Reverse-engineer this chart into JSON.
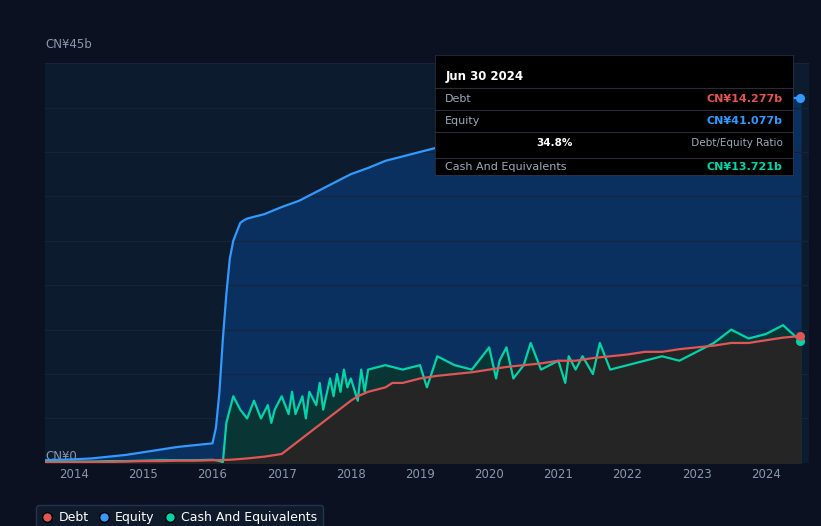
{
  "bg_color": "#0b1120",
  "plot_bg_color": "#0d1b2e",
  "grid_color": "#152538",
  "ylabel_45b": "CN¥45b",
  "ylabel_0": "CN¥0",
  "x_ticks": [
    2014,
    2015,
    2016,
    2017,
    2018,
    2019,
    2020,
    2021,
    2022,
    2023,
    2024
  ],
  "tooltip_date": "Jun 30 2024",
  "tooltip_debt_label": "Debt",
  "tooltip_debt_value": "CN¥14.277b",
  "tooltip_equity_label": "Equity",
  "tooltip_equity_value": "CN¥41.077b",
  "tooltip_ratio_bold": "34.8%",
  "tooltip_ratio_rest": " Debt/Equity Ratio",
  "tooltip_cash_label": "Cash And Equivalents",
  "tooltip_cash_value": "CN¥13.721b",
  "debt_color": "#e05555",
  "equity_color": "#3399ff",
  "cash_color": "#00d4aa",
  "equity_fill_color": "#0a3060",
  "cash_fill_color": "#0a3535",
  "debt_fill_color": "#252525",
  "legend_bg": "#111d2e",
  "legend_border": "#2a3a5a",
  "ylim": [
    0,
    45
  ],
  "xlim_start": 2013.58,
  "xlim_end": 2024.62,
  "equity_data": {
    "x": [
      2013.58,
      2014.0,
      2014.25,
      2014.5,
      2014.75,
      2015.0,
      2015.25,
      2015.5,
      2015.75,
      2016.0,
      2016.05,
      2016.1,
      2016.15,
      2016.2,
      2016.25,
      2016.3,
      2016.35,
      2016.4,
      2016.45,
      2016.5,
      2016.75,
      2017.0,
      2017.25,
      2017.5,
      2017.75,
      2018.0,
      2018.25,
      2018.5,
      2018.75,
      2019.0,
      2019.25,
      2019.5,
      2019.75,
      2020.0,
      2020.25,
      2020.5,
      2020.75,
      2021.0,
      2021.25,
      2021.5,
      2021.75,
      2022.0,
      2022.25,
      2022.5,
      2022.75,
      2023.0,
      2023.25,
      2023.5,
      2023.75,
      2024.0,
      2024.25,
      2024.5
    ],
    "y": [
      0.3,
      0.4,
      0.5,
      0.7,
      0.9,
      1.2,
      1.5,
      1.8,
      2.0,
      2.2,
      4.0,
      8.0,
      14.0,
      19.0,
      23.0,
      25.0,
      26.0,
      27.0,
      27.3,
      27.5,
      28.0,
      28.8,
      29.5,
      30.5,
      31.5,
      32.5,
      33.2,
      34.0,
      34.5,
      35.0,
      35.5,
      36.0,
      36.5,
      37.2,
      37.7,
      38.0,
      37.5,
      38.2,
      37.8,
      38.5,
      39.0,
      39.5,
      39.8,
      40.0,
      40.0,
      40.0,
      40.3,
      40.6,
      40.8,
      41.0,
      41.077,
      41.077
    ]
  },
  "cash_data": {
    "x": [
      2013.58,
      2014.0,
      2014.25,
      2014.5,
      2014.75,
      2015.0,
      2015.25,
      2015.5,
      2015.75,
      2016.0,
      2016.05,
      2016.1,
      2016.15,
      2016.2,
      2016.3,
      2016.4,
      2016.5,
      2016.6,
      2016.7,
      2016.8,
      2016.85,
      2016.9,
      2017.0,
      2017.1,
      2017.15,
      2017.2,
      2017.3,
      2017.35,
      2017.4,
      2017.5,
      2017.55,
      2017.6,
      2017.7,
      2017.75,
      2017.8,
      2017.85,
      2017.9,
      2017.95,
      2018.0,
      2018.1,
      2018.15,
      2018.2,
      2018.25,
      2018.5,
      2018.75,
      2019.0,
      2019.1,
      2019.25,
      2019.5,
      2019.75,
      2020.0,
      2020.1,
      2020.15,
      2020.25,
      2020.35,
      2020.5,
      2020.6,
      2020.75,
      2021.0,
      2021.1,
      2021.15,
      2021.25,
      2021.35,
      2021.5,
      2021.6,
      2021.75,
      2022.0,
      2022.25,
      2022.5,
      2022.75,
      2023.0,
      2023.25,
      2023.5,
      2023.75,
      2024.0,
      2024.25,
      2024.5
    ],
    "y": [
      0.1,
      0.15,
      0.15,
      0.2,
      0.2,
      0.25,
      0.3,
      0.3,
      0.3,
      0.35,
      0.3,
      0.2,
      0.1,
      4.5,
      7.5,
      6.0,
      5.0,
      7.0,
      5.0,
      6.5,
      4.5,
      6.0,
      7.5,
      5.5,
      8.0,
      5.5,
      7.5,
      5.0,
      8.0,
      6.5,
      9.0,
      6.0,
      9.5,
      7.5,
      10.0,
      8.0,
      10.5,
      8.5,
      9.5,
      7.0,
      10.5,
      8.0,
      10.5,
      11.0,
      10.5,
      11.0,
      8.5,
      12.0,
      11.0,
      10.5,
      13.0,
      9.5,
      11.5,
      13.0,
      9.5,
      11.0,
      13.5,
      10.5,
      11.5,
      9.0,
      12.0,
      10.5,
      12.0,
      10.0,
      13.5,
      10.5,
      11.0,
      11.5,
      12.0,
      11.5,
      12.5,
      13.5,
      15.0,
      14.0,
      14.5,
      15.5,
      13.721
    ]
  },
  "debt_data": {
    "x": [
      2013.58,
      2014.0,
      2014.25,
      2014.5,
      2014.75,
      2015.0,
      2015.25,
      2015.5,
      2015.75,
      2016.0,
      2016.25,
      2016.5,
      2016.75,
      2017.0,
      2017.25,
      2017.5,
      2017.75,
      2018.0,
      2018.1,
      2018.25,
      2018.5,
      2018.6,
      2018.75,
      2019.0,
      2019.25,
      2019.5,
      2019.75,
      2020.0,
      2020.25,
      2020.5,
      2020.75,
      2021.0,
      2021.25,
      2021.5,
      2021.75,
      2022.0,
      2022.25,
      2022.5,
      2022.75,
      2023.0,
      2023.25,
      2023.5,
      2023.75,
      2024.0,
      2024.25,
      2024.5
    ],
    "y": [
      0.05,
      0.08,
      0.1,
      0.1,
      0.15,
      0.2,
      0.2,
      0.25,
      0.25,
      0.3,
      0.35,
      0.5,
      0.7,
      1.0,
      2.5,
      4.0,
      5.5,
      7.0,
      7.5,
      8.0,
      8.5,
      9.0,
      9.0,
      9.5,
      9.8,
      10.0,
      10.2,
      10.5,
      10.8,
      11.0,
      11.2,
      11.5,
      11.5,
      11.8,
      12.0,
      12.2,
      12.5,
      12.5,
      12.8,
      13.0,
      13.2,
      13.5,
      13.5,
      13.8,
      14.1,
      14.277
    ]
  }
}
